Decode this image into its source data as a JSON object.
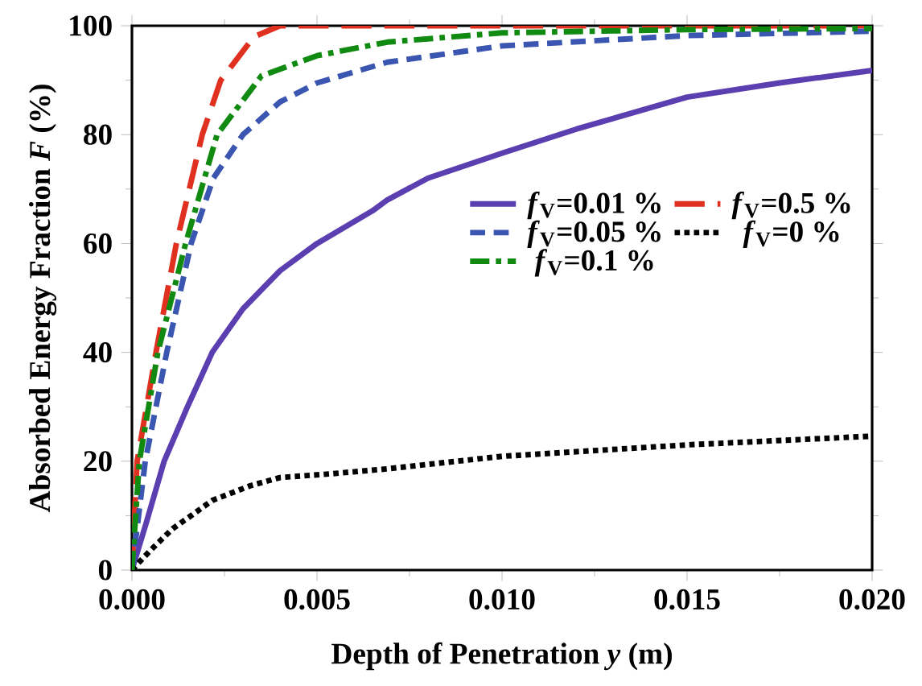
{
  "chart_data": {
    "type": "line",
    "xlabel": "Depth of Penetration *y* (m)",
    "ylabel": "Absorbed Energy Fraction *F* (%)",
    "xlim": [
      0,
      0.02
    ],
    "ylim": [
      0,
      100
    ],
    "xticks": [
      {
        "value": 0,
        "label": "0.000"
      },
      {
        "value": 0.005,
        "label": "0.005"
      },
      {
        "value": 0.01,
        "label": "0.010"
      },
      {
        "value": 0.015,
        "label": "0.015"
      },
      {
        "value": 0.02,
        "label": "0.020"
      }
    ],
    "yticks": [
      0,
      20,
      40,
      60,
      80,
      100
    ],
    "grid": false,
    "legend": "right",
    "marker": "none",
    "series": [
      {
        "name": "*f*$_{V}$=0.01 %",
        "color": "#5b3fb0",
        "line_style": "solid",
        "x": [
          0,
          0.0004,
          0.00087,
          0.0015,
          0.00217,
          0.003,
          0.004,
          0.005,
          0.0065,
          0.0069,
          0.008,
          0.01,
          0.012,
          0.015,
          0.0175,
          0.02
        ],
        "values": [
          0,
          9,
          20,
          30,
          40,
          48,
          55,
          60,
          66,
          68,
          72,
          76.6,
          81,
          86.9,
          89.5,
          91.8
        ]
      },
      {
        "name": "*f*$_{V}$=0.5 %",
        "color": "#e03020",
        "line_style": "long dashed",
        "x": [
          0,
          0.00014,
          0.00065,
          0.0012,
          0.0019,
          0.0024,
          0.0033,
          0.004,
          0.006,
          0.01,
          0.015,
          0.02
        ],
        "values": [
          0,
          20,
          40,
          60,
          80,
          90,
          98,
          100,
          100,
          100,
          100,
          100
        ]
      },
      {
        "name": "*f*$_{V}$=0.05 %",
        "color": "#3a56b0",
        "line_style": "dashed",
        "x": [
          0,
          0.00036,
          0.00094,
          0.0016,
          0.0022,
          0.003,
          0.004,
          0.005,
          0.0069,
          0.01,
          0.015,
          0.02
        ],
        "values": [
          0,
          20,
          40,
          60,
          72,
          80,
          86,
          89.5,
          93.3,
          96.3,
          98.2,
          99
        ]
      },
      {
        "name": "*f*$_{V}$=0 %",
        "color": "#000000",
        "line_style": "dotted",
        "x": [
          0,
          0.0003,
          0.0006,
          0.0011,
          0.0016,
          0.00217,
          0.0032,
          0.004,
          0.0054,
          0.0069,
          0.01,
          0.015,
          0.02
        ],
        "values": [
          0,
          2.2,
          4.3,
          7.6,
          10,
          12.8,
          15.5,
          17,
          17.7,
          18.6,
          20.9,
          23,
          24.6
        ]
      },
      {
        "name": "*f*$_{V}$=0.1 %",
        "color": "#108a10",
        "line_style": "dashdot",
        "x": [
          0,
          0.0002,
          0.0007,
          0.00145,
          0.0023,
          0.0035,
          0.005,
          0.0069,
          0.01,
          0.015,
          0.02
        ],
        "values": [
          0,
          20,
          40,
          60,
          80,
          90.8,
          94.5,
          97,
          98.7,
          99.3,
          99.5
        ]
      }
    ]
  }
}
